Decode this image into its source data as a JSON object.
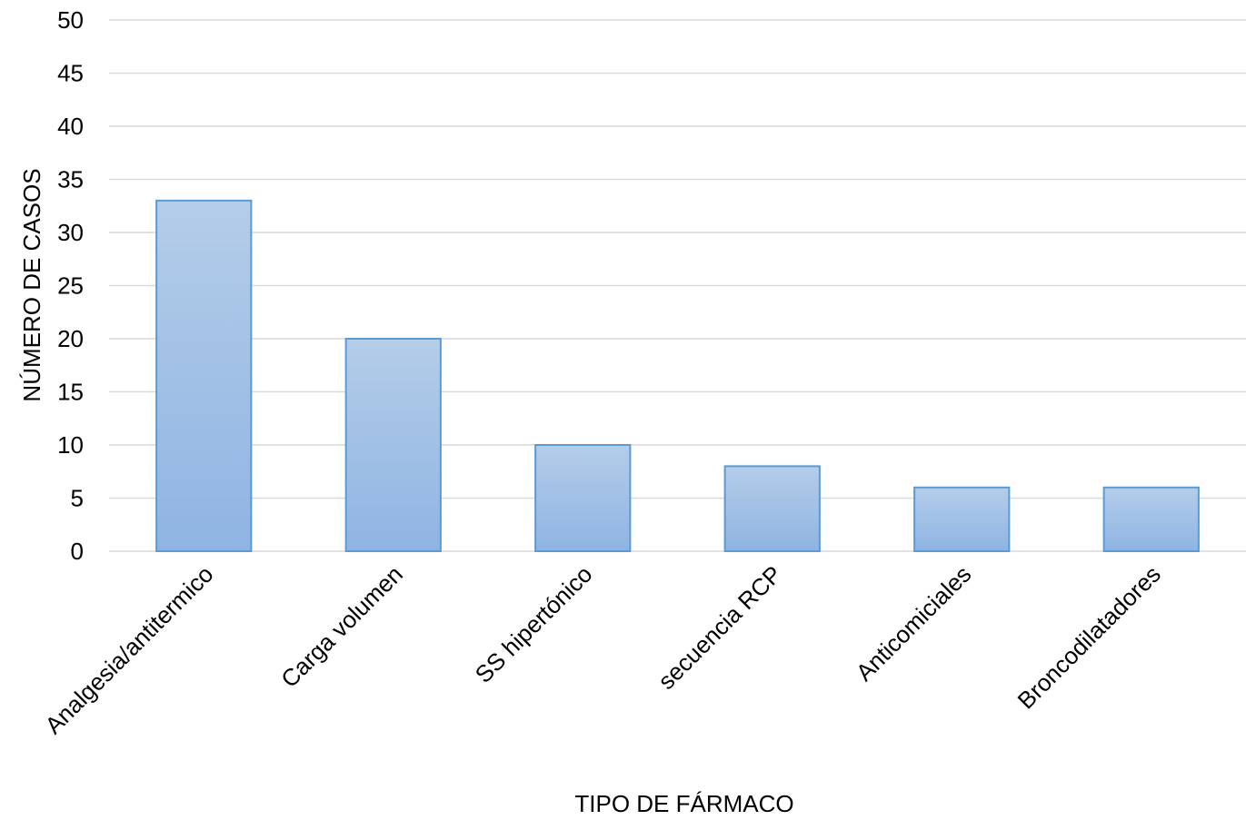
{
  "chart_data": {
    "type": "bar",
    "categories": [
      "Analgesia/antitermico",
      "Carga volumen",
      "SS hipertónico",
      "secuencia RCP",
      "Anticomiciales",
      "Broncodilatadores"
    ],
    "values": [
      33,
      20,
      10,
      8,
      6,
      6
    ],
    "title": "",
    "xlabel": "TIPO DE FÁRMACO",
    "ylabel": "NÚMERO DE CASOS",
    "ylim": [
      0,
      50
    ],
    "yticks": [
      0,
      5,
      10,
      15,
      20,
      25,
      30,
      35,
      40,
      45,
      50
    ],
    "grid": true,
    "legend": "none",
    "colors": {
      "bar_top": "#b4cde9",
      "bar_bottom": "#8fb4e3",
      "bar_border": "#5b9bd5",
      "grid": "#d9d9d9"
    }
  }
}
